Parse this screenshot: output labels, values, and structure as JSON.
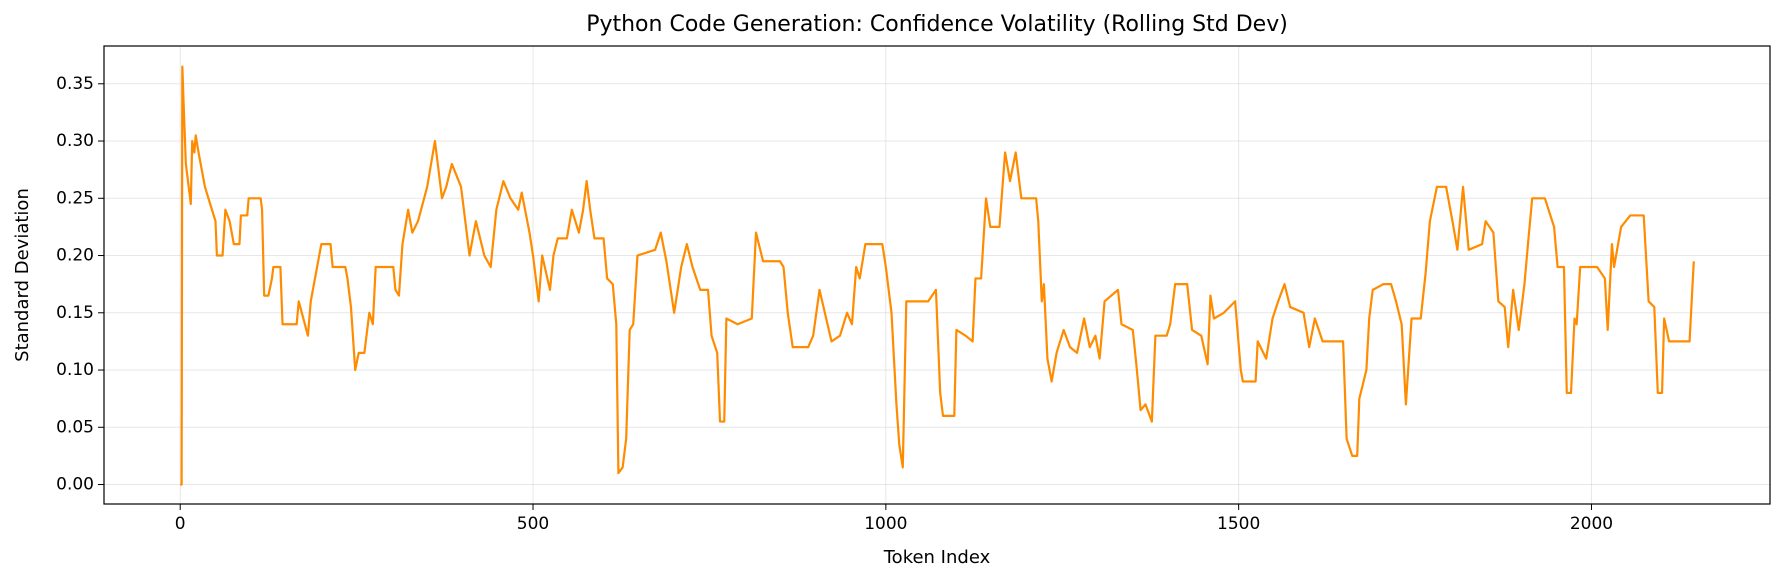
{
  "chart_data": {
    "type": "line",
    "title": "Python Code Generation: Confidence Volatility (Rolling Std Dev)",
    "x_label": "Token Index",
    "y_label": "Standard Deviation",
    "color": "#ff8c00",
    "grid": true,
    "xlim": [
      -108,
      2253
    ],
    "ylim": [
      -0.017,
      0.383
    ],
    "xticks": [
      0,
      500,
      1000,
      1500,
      2000
    ],
    "yticks": [
      {
        "value": 0,
        "label": "0.00"
      },
      {
        "value": 0.05,
        "label": "0.05"
      },
      {
        "value": 0.1,
        "label": "0.10"
      },
      {
        "value": 0.15,
        "label": "0.15"
      },
      {
        "value": 0.2,
        "label": "0.20"
      },
      {
        "value": 0.25,
        "label": "0.25"
      },
      {
        "value": 0.3,
        "label": "0.30"
      },
      {
        "value": 0.35,
        "label": "0.35"
      }
    ],
    "x": [
      0,
      2,
      3,
      5,
      8,
      12,
      15,
      17,
      20,
      22,
      26,
      35,
      45,
      50,
      52,
      60,
      64,
      70,
      76,
      84,
      86,
      95,
      97,
      114,
      116,
      119,
      125,
      130,
      132,
      142,
      145,
      165,
      168,
      181,
      185,
      200,
      213,
      216,
      234,
      237,
      242,
      248,
      253,
      261,
      268,
      273,
      277,
      302,
      305,
      310,
      315,
      323,
      329,
      337,
      350,
      361,
      371,
      377,
      385,
      398,
      410,
      419,
      431,
      440,
      448,
      458,
      468,
      479,
      484,
      495,
      500,
      508,
      513,
      524,
      529,
      535,
      548,
      555,
      565,
      571,
      576,
      581,
      587,
      600,
      605,
      613,
      618,
      621,
      627,
      632,
      637,
      642,
      648,
      673,
      681,
      689,
      700,
      710,
      718,
      726,
      737,
      748,
      753,
      761,
      765,
      771,
      774,
      790,
      810,
      816,
      826,
      850,
      855,
      861,
      868,
      890,
      897,
      906,
      923,
      935,
      945,
      952,
      958,
      963,
      971,
      995,
      1000,
      1008,
      1015,
      1019,
      1024,
      1029,
      1060,
      1071,
      1077,
      1081,
      1097,
      1100,
      1113,
      1123,
      1127,
      1135,
      1142,
      1148,
      1161,
      1169,
      1176,
      1184,
      1192,
      1213,
      1216,
      1221,
      1224,
      1229,
      1235,
      1242,
      1252,
      1261,
      1271,
      1281,
      1289,
      1297,
      1303,
      1310,
      1329,
      1334,
      1350,
      1355,
      1361,
      1368,
      1377,
      1382,
      1398,
      1403,
      1410,
      1427,
      1434,
      1447,
      1456,
      1460,
      1465,
      1479,
      1495,
      1503,
      1506,
      1524,
      1527,
      1539,
      1548,
      1556,
      1565,
      1573,
      1592,
      1600,
      1608,
      1619,
      1648,
      1653,
      1661,
      1668,
      1671,
      1681,
      1685,
      1690,
      1705,
      1716,
      1723,
      1731,
      1737,
      1745,
      1758,
      1765,
      1771,
      1781,
      1794,
      1803,
      1810,
      1818,
      1826,
      1845,
      1850,
      1861,
      1868,
      1877,
      1882,
      1889,
      1897,
      1905,
      1910,
      1916,
      1934,
      1947,
      1952,
      1961,
      1965,
      1971,
      1976,
      1979,
      1984,
      2008,
      2019,
      2023,
      2029,
      2032,
      2042,
      2055,
      2074,
      2081,
      2089,
      2094,
      2100,
      2103,
      2110,
      2139,
      2142,
      2145
    ],
    "values": [
      0,
      0,
      0.365,
      0.33,
      0.28,
      0.26,
      0.245,
      0.3,
      0.29,
      0.305,
      0.29,
      0.26,
      0.24,
      0.23,
      0.2,
      0.2,
      0.24,
      0.23,
      0.21,
      0.21,
      0.235,
      0.235,
      0.25,
      0.25,
      0.24,
      0.165,
      0.165,
      0.18,
      0.19,
      0.19,
      0.14,
      0.14,
      0.16,
      0.13,
      0.16,
      0.21,
      0.21,
      0.19,
      0.19,
      0.18,
      0.155,
      0.1,
      0.115,
      0.115,
      0.15,
      0.14,
      0.19,
      0.19,
      0.17,
      0.165,
      0.21,
      0.24,
      0.22,
      0.23,
      0.26,
      0.3,
      0.25,
      0.26,
      0.28,
      0.26,
      0.2,
      0.23,
      0.2,
      0.19,
      0.24,
      0.265,
      0.25,
      0.24,
      0.255,
      0.22,
      0.2,
      0.16,
      0.2,
      0.17,
      0.2,
      0.215,
      0.215,
      0.24,
      0.22,
      0.24,
      0.265,
      0.24,
      0.215,
      0.215,
      0.18,
      0.175,
      0.14,
      0.01,
      0.015,
      0.04,
      0.135,
      0.14,
      0.2,
      0.205,
      0.22,
      0.195,
      0.15,
      0.19,
      0.21,
      0.19,
      0.17,
      0.17,
      0.13,
      0.115,
      0.055,
      0.055,
      0.145,
      0.14,
      0.145,
      0.22,
      0.195,
      0.195,
      0.19,
      0.15,
      0.12,
      0.12,
      0.13,
      0.17,
      0.125,
      0.13,
      0.15,
      0.14,
      0.19,
      0.18,
      0.21,
      0.21,
      0.19,
      0.15,
      0.07,
      0.035,
      0.015,
      0.16,
      0.16,
      0.17,
      0.08,
      0.06,
      0.06,
      0.135,
      0.13,
      0.125,
      0.18,
      0.18,
      0.25,
      0.225,
      0.225,
      0.29,
      0.265,
      0.29,
      0.25,
      0.25,
      0.23,
      0.16,
      0.175,
      0.11,
      0.09,
      0.115,
      0.135,
      0.12,
      0.115,
      0.145,
      0.12,
      0.13,
      0.11,
      0.16,
      0.17,
      0.14,
      0.135,
      0.105,
      0.065,
      0.07,
      0.055,
      0.13,
      0.13,
      0.14,
      0.175,
      0.175,
      0.135,
      0.13,
      0.105,
      0.165,
      0.145,
      0.15,
      0.16,
      0.1,
      0.09,
      0.09,
      0.125,
      0.11,
      0.145,
      0.16,
      0.175,
      0.155,
      0.15,
      0.12,
      0.145,
      0.125,
      0.125,
      0.04,
      0.025,
      0.025,
      0.075,
      0.1,
      0.145,
      0.17,
      0.175,
      0.175,
      0.16,
      0.14,
      0.07,
      0.145,
      0.145,
      0.185,
      0.23,
      0.26,
      0.26,
      0.23,
      0.205,
      0.26,
      0.205,
      0.21,
      0.23,
      0.22,
      0.16,
      0.155,
      0.12,
      0.17,
      0.135,
      0.175,
      0.21,
      0.25,
      0.25,
      0.225,
      0.19,
      0.19,
      0.08,
      0.08,
      0.145,
      0.14,
      0.19,
      0.19,
      0.18,
      0.135,
      0.21,
      0.19,
      0.225,
      0.235,
      0.235,
      0.16,
      0.155,
      0.08,
      0.08,
      0.145,
      0.125,
      0.125,
      0.16,
      0.195
    ]
  }
}
